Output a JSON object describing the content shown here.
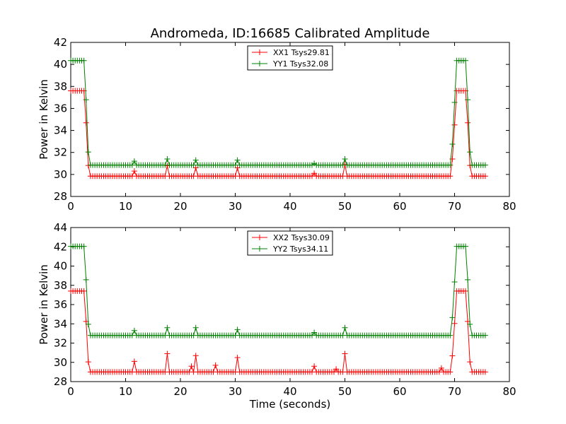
{
  "figure": {
    "title": "Andromeda, ID:16685 Calibrated Amplitude",
    "xlabel": "Time (seconds)"
  },
  "chart_data": [
    {
      "type": "line",
      "ylabel": "Power in Kelvin",
      "xlim": [
        0,
        80
      ],
      "ylim": [
        28,
        42
      ],
      "xticks": [
        0,
        10,
        20,
        30,
        40,
        50,
        60,
        70,
        80
      ],
      "yticks": [
        28,
        30,
        32,
        34,
        36,
        38,
        40,
        42
      ],
      "legend_position": "top-center",
      "series": [
        {
          "name": "XX1 Tsys29.81",
          "color": "#ff0000",
          "base": 29.85,
          "high": 37.6,
          "spikes": [
            [
              11.4,
              30.3
            ],
            [
              17.8,
              30.8
            ],
            [
              22.9,
              30.6
            ],
            [
              30.3,
              30.6
            ],
            [
              44.2,
              30.1
            ],
            [
              50.1,
              30.9
            ]
          ]
        },
        {
          "name": "YY1 Tsys32.08",
          "color": "#008000",
          "base": 30.85,
          "high": 40.35,
          "spikes": [
            [
              11.4,
              31.2
            ],
            [
              17.8,
              31.4
            ],
            [
              22.9,
              31.3
            ],
            [
              30.3,
              31.3
            ],
            [
              44.2,
              31.0
            ],
            [
              50.1,
              31.4
            ]
          ]
        }
      ]
    },
    {
      "type": "line",
      "ylabel": "Power in Kelvin",
      "xlim": [
        0,
        80
      ],
      "ylim": [
        28,
        44
      ],
      "xticks": [
        0,
        10,
        20,
        30,
        40,
        50,
        60,
        70,
        80
      ],
      "yticks": [
        28,
        30,
        32,
        34,
        36,
        38,
        40,
        42,
        44
      ],
      "legend_position": "top-center",
      "series": [
        {
          "name": "XX2 Tsys30.09",
          "color": "#ff0000",
          "base": 29.0,
          "high": 37.4,
          "spikes": [
            [
              11.4,
              30.1
            ],
            [
              17.8,
              30.9
            ],
            [
              22.0,
              29.6
            ],
            [
              22.9,
              30.7
            ],
            [
              26.5,
              29.7
            ],
            [
              30.3,
              30.5
            ],
            [
              44.2,
              29.6
            ],
            [
              48.5,
              29.3
            ],
            [
              50.1,
              30.9
            ],
            [
              67.8,
              29.4
            ]
          ]
        },
        {
          "name": "YY2 Tsys34.11",
          "color": "#008000",
          "base": 32.8,
          "high": 42.05,
          "spikes": [
            [
              11.4,
              33.3
            ],
            [
              17.8,
              33.6
            ],
            [
              22.9,
              33.6
            ],
            [
              30.3,
              33.4
            ],
            [
              44.2,
              33.1
            ],
            [
              50.1,
              33.6
            ]
          ]
        }
      ]
    }
  ]
}
